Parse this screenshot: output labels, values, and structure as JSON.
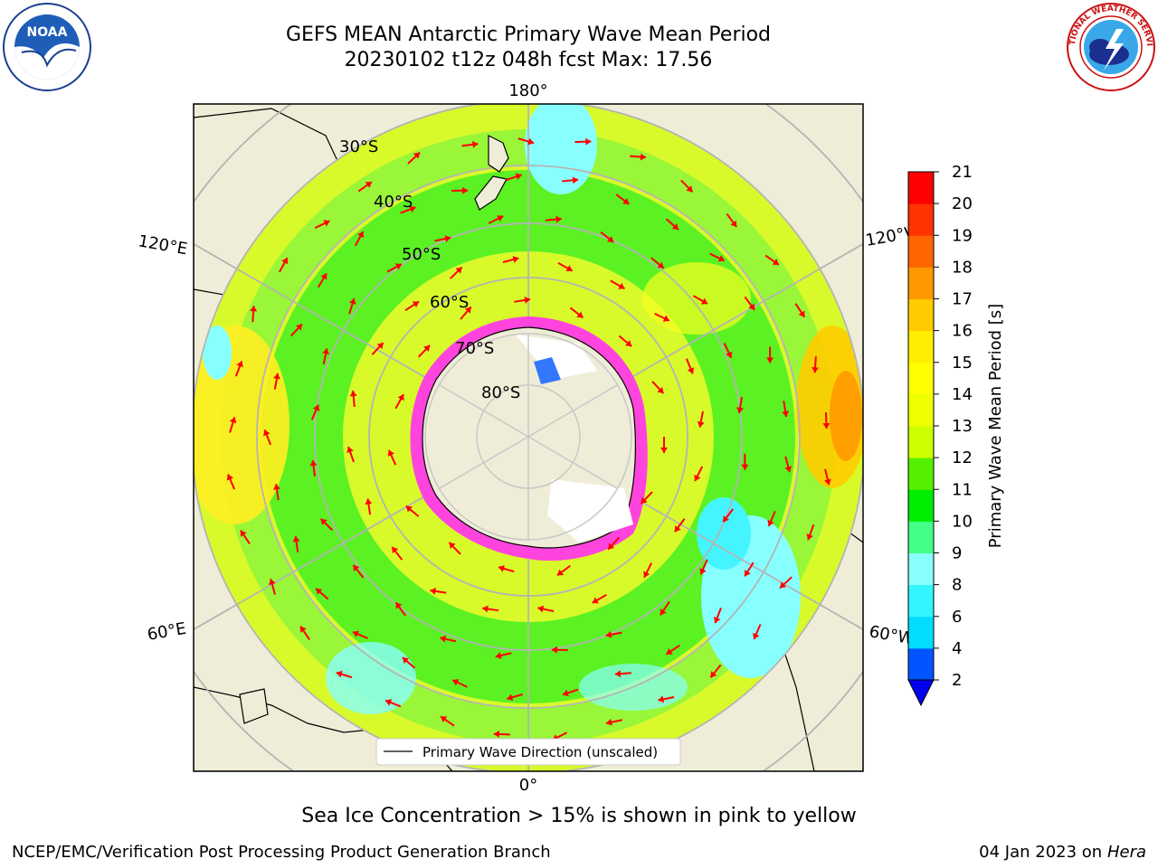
{
  "header": {
    "title_line1": "GEFS MEAN Antarctic Primary Wave Mean Period",
    "title_line2": "20230102 t12z 048h fcst   Max: 17.56"
  },
  "logos": {
    "left": {
      "icon": "noaa-logo-icon",
      "text": "NOAA"
    },
    "right": {
      "icon": "nws-logo-icon",
      "text": "NATIONAL WEATHER SERVICE"
    }
  },
  "map": {
    "projection": "south-polar-stereographic",
    "longitude_labels": {
      "top": "180°",
      "bottom": "0°",
      "left_upper": "120°E",
      "right_upper": "120°W",
      "left_lower": "60°E",
      "right_lower": "60°W"
    },
    "latitude_labels": [
      "30°S",
      "40°S",
      "50°S",
      "60°S",
      "70°S",
      "80°S"
    ],
    "legend_label": "Primary Wave Direction (unscaled)",
    "arrow_color": "#ff0000",
    "land_color": "#efedd8"
  },
  "colorbar": {
    "label": "Primary Wave Mean Period [s]",
    "ticks": [
      "2",
      "4",
      "6",
      "8",
      "9",
      "10",
      "11",
      "12",
      "13",
      "14",
      "15",
      "16",
      "17",
      "18",
      "19",
      "20",
      "21"
    ],
    "colors": [
      "#0055ff",
      "#00ddff",
      "#33f5ff",
      "#88ffff",
      "#44ff88",
      "#00ee00",
      "#55f000",
      "#ccff00",
      "#eeff00",
      "#ffff00",
      "#ffee00",
      "#ffcc00",
      "#ff9900",
      "#ff6600",
      "#ff3300",
      "#ff0000"
    ],
    "extend_color": "#0000ee",
    "max_value": 17.56
  },
  "footer": {
    "ice_note": "Sea Ice Concentration > 15% is shown in pink to yellow",
    "credit": "NCEP/EMC/Verification Post Processing Product Generation Branch",
    "date": "04 Jan 2023 on ",
    "host": "Hera"
  }
}
